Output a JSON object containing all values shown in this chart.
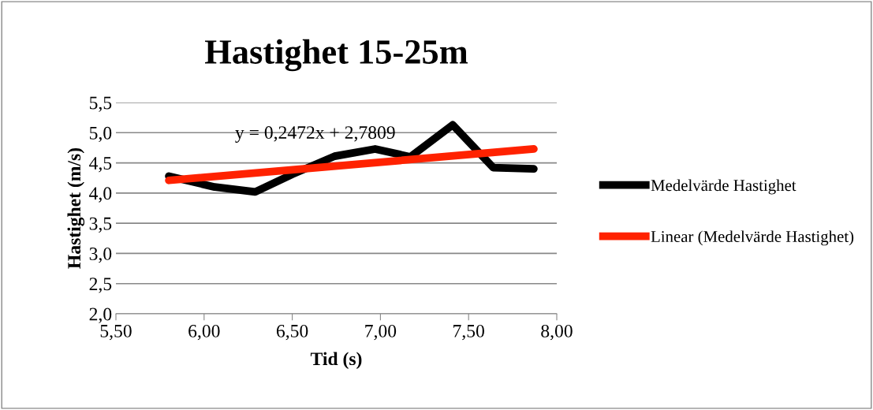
{
  "chart_data": {
    "type": "line",
    "title": "Hastighet 15-25m",
    "xlabel": "Tid (s)",
    "ylabel": "Hastighet (m/s)",
    "xlim": [
      5.5,
      8.0
    ],
    "xticks": [
      {
        "value": 5.5,
        "label": "5,50"
      },
      {
        "value": 6.0,
        "label": "6,00"
      },
      {
        "value": 6.5,
        "label": "6,50"
      },
      {
        "value": 7.0,
        "label": "7,00"
      },
      {
        "value": 7.5,
        "label": "7,50"
      },
      {
        "value": 8.0,
        "label": "8,00"
      }
    ],
    "ylim": [
      2.0,
      5.5
    ],
    "yticks": [
      {
        "value": 2.0,
        "label": "2,0"
      },
      {
        "value": 2.5,
        "label": "2,5"
      },
      {
        "value": 3.0,
        "label": "3,0"
      },
      {
        "value": 3.5,
        "label": "3,5"
      },
      {
        "value": 4.0,
        "label": "4,0"
      },
      {
        "value": 4.5,
        "label": "4,5"
      },
      {
        "value": 5.0,
        "label": "5,0"
      },
      {
        "value": 5.5,
        "label": "5,5"
      }
    ],
    "grid": "y",
    "legend": "right",
    "marker": "none",
    "line_style": "solid",
    "series": [
      {
        "name": "Medelvärde Hastighet",
        "color": "#000000",
        "x": [
          5.8,
          6.06,
          6.29,
          6.5,
          6.74,
          6.97,
          7.17,
          7.41,
          7.64,
          7.87
        ],
        "values": [
          4.28,
          4.1,
          4.02,
          4.31,
          4.61,
          4.73,
          4.6,
          5.13,
          4.42,
          4.4
        ]
      },
      {
        "name": "Linear (Medelvärde Hastighet)",
        "color": "#ff2200",
        "x": [
          5.8,
          7.87
        ],
        "values": [
          4.21,
          4.73
        ]
      }
    ],
    "annotations": [
      "y = 0,2472x + 2,7809"
    ]
  }
}
